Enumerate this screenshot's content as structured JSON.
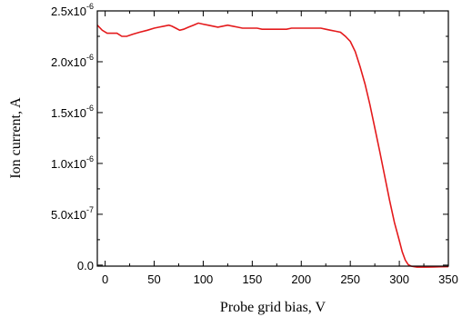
{
  "chart_data": {
    "type": "line",
    "title": "",
    "xlabel": "Probe grid bias, V",
    "ylabel": "Ion current, A",
    "xlim": [
      -8,
      350
    ],
    "ylim": [
      -1e-08,
      2.5e-06
    ],
    "x_ticks": [
      0,
      50,
      100,
      150,
      200,
      250,
      300,
      350
    ],
    "x_tick_labels": [
      "0",
      "50",
      "100",
      "150",
      "200",
      "250",
      "300",
      "350"
    ],
    "y_ticks": [
      0,
      5e-07,
      1e-06,
      1.5e-06,
      2e-06,
      2.5e-06
    ],
    "y_tick_labels": [
      {
        "mantissa": "0.0",
        "exp": ""
      },
      {
        "mantissa": "5.0x10",
        "exp": "-7"
      },
      {
        "mantissa": "1.0x10",
        "exp": "-6"
      },
      {
        "mantissa": "1.5x10",
        "exp": "-6"
      },
      {
        "mantissa": "2.0x10",
        "exp": "-6"
      },
      {
        "mantissa": "2.5x10",
        "exp": "-6"
      }
    ],
    "grid": false,
    "series": [
      {
        "color": "#e41a1c",
        "x": [
          -8,
          -3,
          2,
          8,
          12,
          17,
          22,
          28,
          35,
          43,
          50,
          55,
          60,
          65,
          68,
          72,
          76,
          80,
          85,
          90,
          95,
          100,
          105,
          110,
          115,
          120,
          125,
          130,
          135,
          140,
          145,
          150,
          155,
          160,
          165,
          170,
          175,
          180,
          185,
          190,
          195,
          200,
          205,
          210,
          215,
          220,
          225,
          230,
          235,
          240,
          245,
          250,
          255,
          260,
          265,
          270,
          275,
          280,
          285,
          290,
          295,
          300,
          303,
          306,
          309,
          312,
          315,
          318,
          322,
          328,
          335,
          342,
          350
        ],
        "y": [
          2.36e-06,
          2.31e-06,
          2.28e-06,
          2.28e-06,
          2.28e-06,
          2.25e-06,
          2.25e-06,
          2.27e-06,
          2.29e-06,
          2.31e-06,
          2.33e-06,
          2.34e-06,
          2.35e-06,
          2.36e-06,
          2.35e-06,
          2.33e-06,
          2.31e-06,
          2.32e-06,
          2.34e-06,
          2.36e-06,
          2.38e-06,
          2.37e-06,
          2.36e-06,
          2.35e-06,
          2.34e-06,
          2.35e-06,
          2.36e-06,
          2.35e-06,
          2.34e-06,
          2.33e-06,
          2.33e-06,
          2.33e-06,
          2.33e-06,
          2.32e-06,
          2.32e-06,
          2.32e-06,
          2.32e-06,
          2.32e-06,
          2.32e-06,
          2.33e-06,
          2.33e-06,
          2.33e-06,
          2.33e-06,
          2.33e-06,
          2.33e-06,
          2.33e-06,
          2.32e-06,
          2.31e-06,
          2.3e-06,
          2.29e-06,
          2.25e-06,
          2.2e-06,
          2.1e-06,
          1.95e-06,
          1.78e-06,
          1.58e-06,
          1.35e-06,
          1.12e-06,
          8.8e-07,
          6.4e-07,
          4.2e-07,
          2.4e-07,
          1.3e-07,
          5e-08,
          5e-09,
          -1e-08,
          -1.5e-08,
          -2e-08,
          -2e-08,
          -2e-08,
          -1.8e-08,
          -1.6e-08,
          -1.5e-08
        ]
      }
    ]
  }
}
